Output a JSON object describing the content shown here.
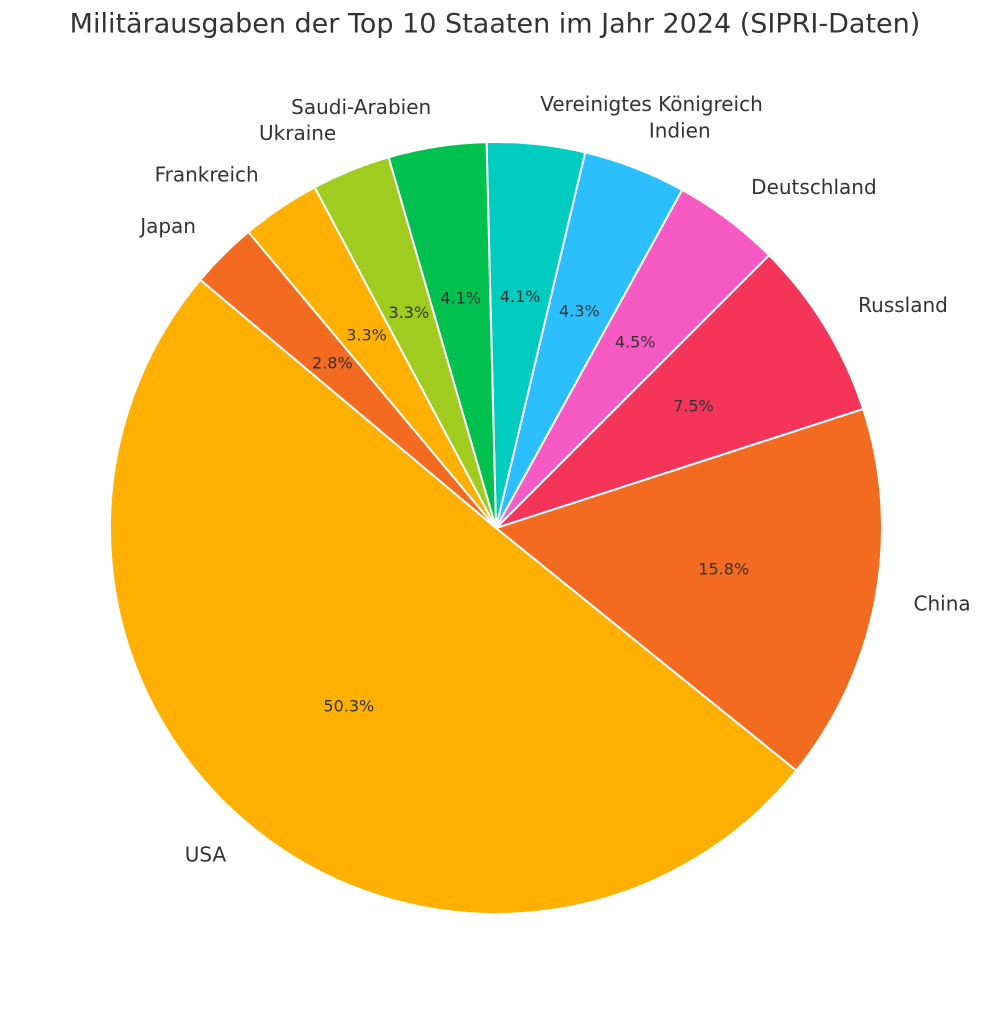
{
  "chart_data": {
    "type": "pie",
    "title": "Militärausgaben der Top 10 Staaten im Jahr 2024 (SIPRI-Daten)",
    "categories": [
      "USA",
      "China",
      "Russland",
      "Deutschland",
      "Indien",
      "Vereinigtes Königreich",
      "Saudi-Arabien",
      "Ukraine",
      "Frankreich",
      "Japan"
    ],
    "values": [
      50.3,
      15.8,
      7.5,
      4.5,
      4.3,
      4.1,
      4.1,
      3.3,
      3.3,
      2.8
    ],
    "value_labels": [
      "50.3%",
      "15.8%",
      "7.5%",
      "4.5%",
      "4.3%",
      "4.1%",
      "4.1%",
      "3.3%",
      "3.3%",
      "2.8%"
    ],
    "colors": [
      "#ffb000",
      "#f26b21",
      "#f5345a",
      "#f75ac3",
      "#2bbfff",
      "#00ccc0",
      "#00c050",
      "#a0cc20",
      "#ffb000",
      "#f26b21"
    ]
  }
}
